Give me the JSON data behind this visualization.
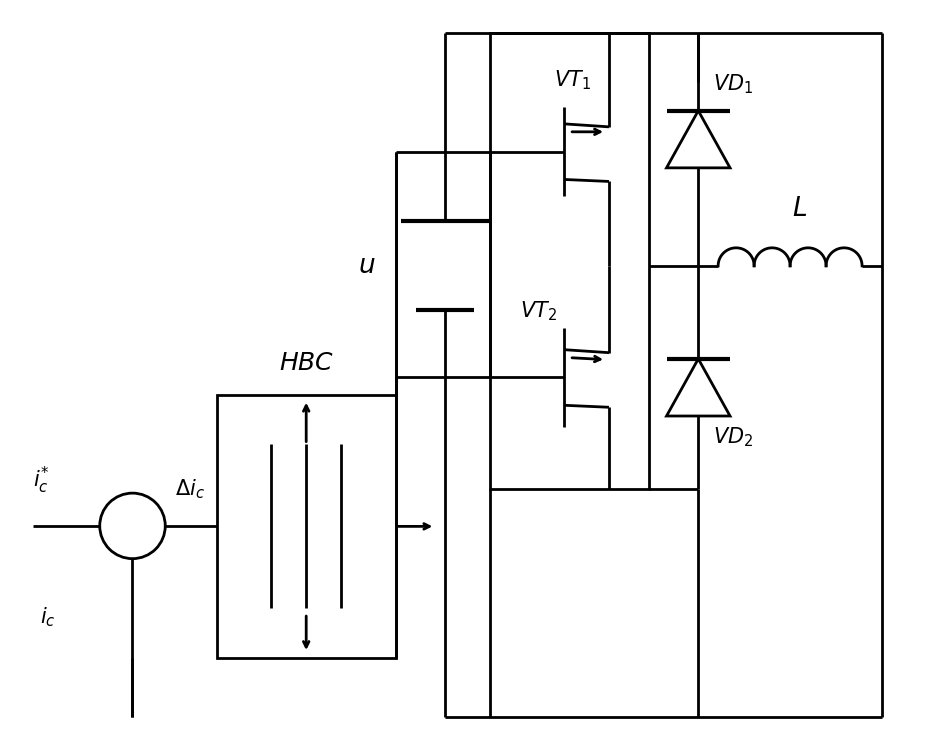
{
  "fig_width": 9.36,
  "fig_height": 7.52,
  "dpi": 100,
  "bg_color": "#ffffff",
  "line_color": "#000000",
  "lw": 2.0,
  "fs": 15
}
